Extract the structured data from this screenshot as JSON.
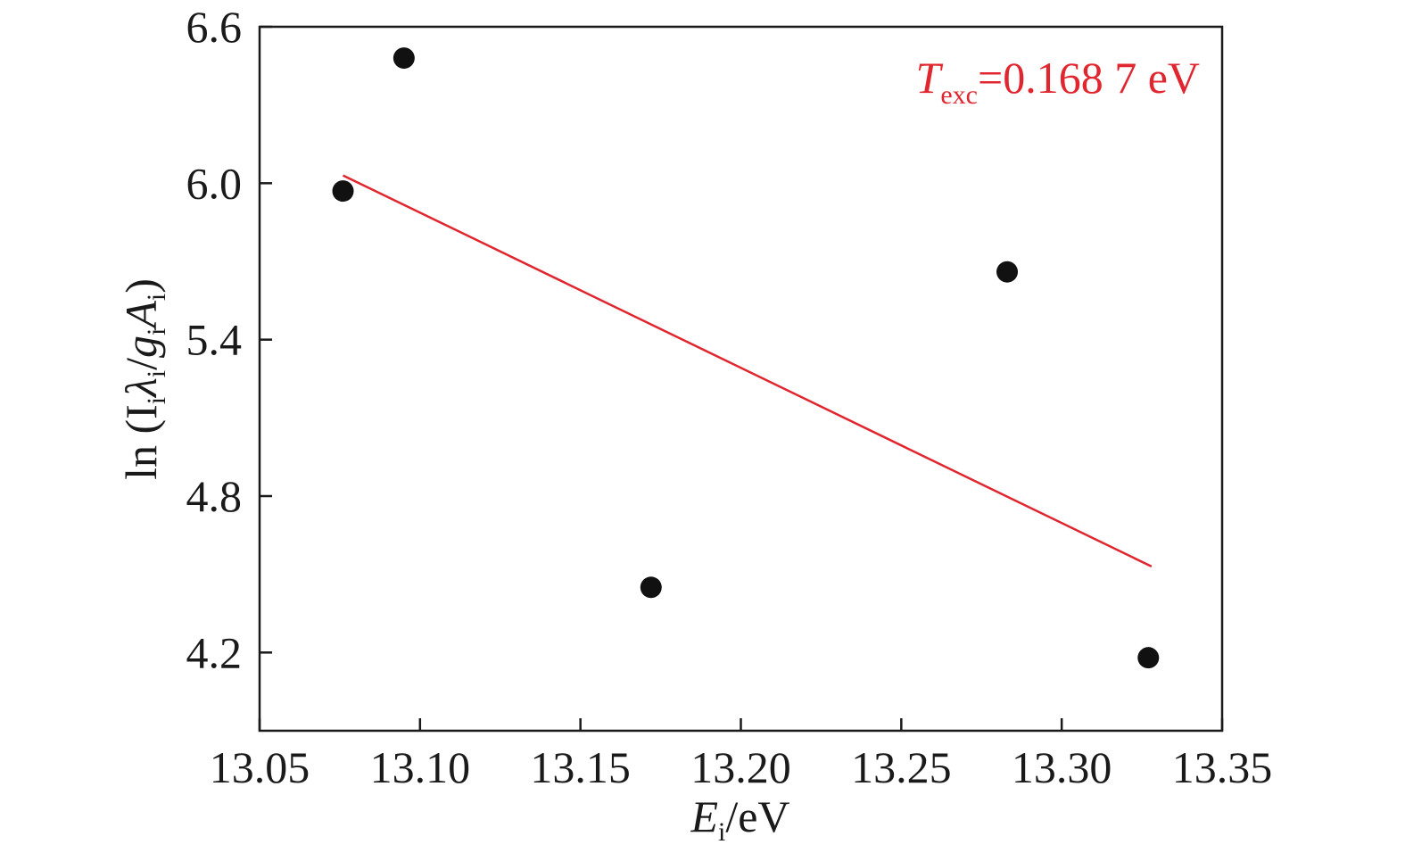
{
  "chart_data": {
    "type": "scatter",
    "xlabel": {
      "main": "E",
      "sub": "i",
      "unit": "/eV"
    },
    "ylabel": {
      "prefix": "ln (I",
      "sub1": "i",
      "lambda": "λ",
      "sub2": "i",
      "slash": "/",
      "g": "g",
      "sub3": "i",
      "A": "A",
      "sub4": "i",
      "suffix": ")"
    },
    "xlim": [
      13.05,
      13.35
    ],
    "ylim": [
      3.9,
      6.6
    ],
    "x_ticks": [
      13.05,
      13.1,
      13.15,
      13.2,
      13.25,
      13.3,
      13.35
    ],
    "x_tick_labels": [
      "13.05",
      "13.10",
      "13.15",
      "13.20",
      "13.25",
      "13.30",
      "13.35"
    ],
    "y_ticks": [
      4.2,
      4.8,
      5.4,
      6.0,
      6.6
    ],
    "y_tick_labels": [
      "4.2",
      "4.8",
      "5.4",
      "6.0",
      "6.6"
    ],
    "grid": false,
    "points": [
      {
        "x": 13.076,
        "y": 5.97
      },
      {
        "x": 13.095,
        "y": 6.48
      },
      {
        "x": 13.172,
        "y": 4.45
      },
      {
        "x": 13.283,
        "y": 5.66
      },
      {
        "x": 13.327,
        "y": 4.18
      }
    ],
    "fit_line": {
      "x": [
        13.076,
        13.328
      ],
      "y": [
        6.03,
        4.53
      ],
      "color": "#e0262f"
    },
    "annotation": {
      "T": "T",
      "sub": "exc",
      "value": "=0.168 7 eV",
      "color": "#e0262f",
      "position": "top-right"
    },
    "marker_color": "#111111",
    "axis_color": "#1a1a1a"
  }
}
